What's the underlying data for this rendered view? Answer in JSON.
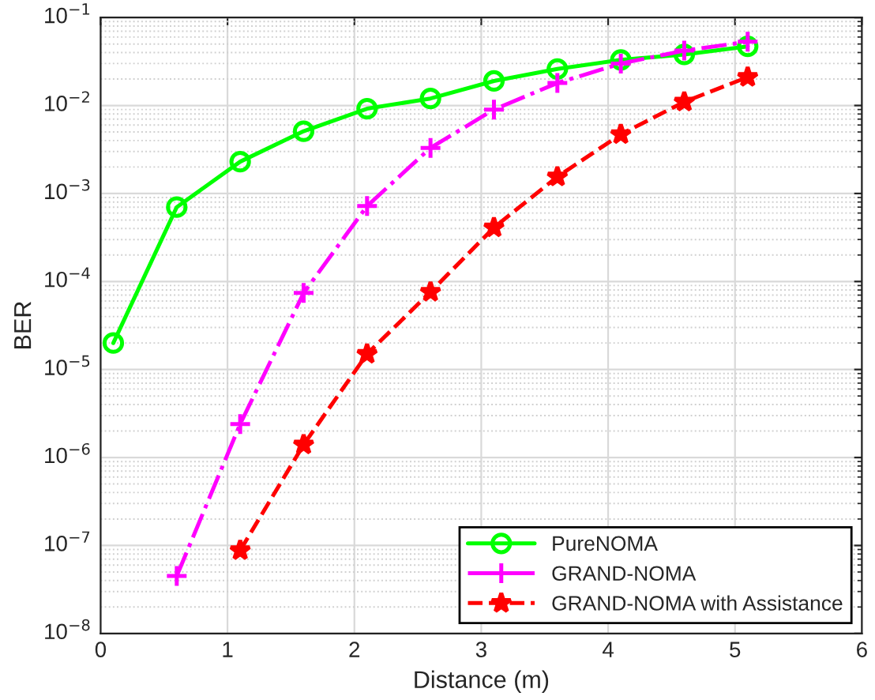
{
  "chart_data": {
    "type": "line",
    "xlabel": "Distance (m)",
    "ylabel": "BER",
    "log": "y",
    "grid": true,
    "legend": "bottom right",
    "xlim": [
      0,
      6
    ],
    "xticks": [
      0,
      1,
      2,
      3,
      4,
      5,
      6
    ],
    "ylim": [
      1e-08,
      0.1
    ],
    "yticks": [
      {
        "value": 1e-08,
        "label": "10$^{−8}$"
      },
      {
        "value": 1e-07,
        "label": "10$^{−7}$"
      },
      {
        "value": 1e-06,
        "label": "10$^{−6}$"
      },
      {
        "value": 1e-05,
        "label": "10$^{−5}$"
      },
      {
        "value": 0.0001,
        "label": "10$^{−4}$"
      },
      {
        "value": 0.001,
        "label": "10$^{−3}$"
      },
      {
        "value": 0.01,
        "label": "10$^{−2}$"
      },
      {
        "value": 0.1,
        "label": "10$^{−1}$"
      }
    ],
    "series": [
      {
        "name": "PureNOMA",
        "color": "#00ff00",
        "marker": "circle",
        "line_style": "solid",
        "x": [
          0.1,
          0.6,
          1.1,
          1.6,
          2.1,
          2.6,
          3.1,
          3.6,
          4.1,
          4.6,
          5.1
        ],
        "values": [
          2e-05,
          0.0007,
          0.0023,
          0.0051,
          0.0092,
          0.012,
          0.019,
          0.026,
          0.033,
          0.038,
          0.047
        ]
      },
      {
        "name": "GRAND-NOMA",
        "color": "#ff00ff",
        "marker": "cross",
        "line_style": "dashdot",
        "x": [
          0.6,
          1.1,
          1.6,
          2.1,
          2.6,
          3.1,
          3.6,
          4.1,
          4.6,
          5.1
        ],
        "values": [
          4.5e-08,
          2.4e-06,
          7.4e-05,
          0.00072,
          0.0033,
          0.009,
          0.018,
          0.03,
          0.042,
          0.053
        ]
      },
      {
        "name": "GRAND-NOMA with Assistance",
        "color": "#ff0000",
        "marker": "star",
        "line_style": "dashed",
        "x": [
          1.1,
          1.6,
          2.1,
          2.6,
          3.1,
          3.6,
          4.1,
          4.6,
          5.1
        ],
        "values": [
          8.8e-08,
          1.4e-06,
          1.5e-05,
          7.6e-05,
          0.00041,
          0.00155,
          0.0047,
          0.011,
          0.021
        ]
      }
    ]
  }
}
